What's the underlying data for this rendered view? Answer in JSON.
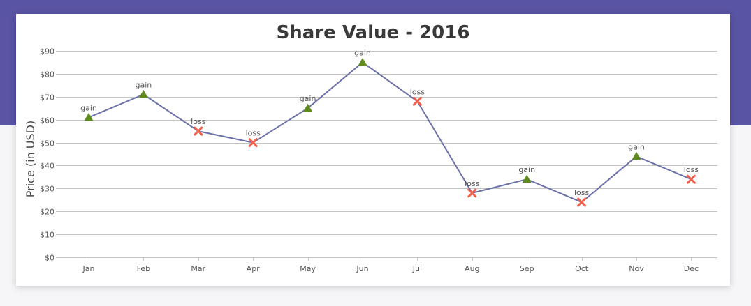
{
  "colors": {
    "header_band": "#5a54a4",
    "line": "#6b70a8",
    "gain_marker": "#5f8a1e",
    "loss_marker": "#f0614d",
    "grid": "#c4c4c4"
  },
  "chart_data": {
    "type": "line",
    "title": "Share Value - 2016",
    "xlabel": "",
    "ylabel": "Price (in USD)",
    "y_prefix": "$",
    "ylim": [
      0,
      90
    ],
    "y_ticks": [
      0,
      10,
      20,
      30,
      40,
      50,
      60,
      70,
      80,
      90
    ],
    "y_tick_labels": [
      "$0",
      "$10",
      "$20",
      "$30",
      "$40",
      "$50",
      "$60",
      "$70",
      "$80",
      "$90"
    ],
    "grid": true,
    "categories": [
      "Jan",
      "Feb",
      "Mar",
      "Apr",
      "May",
      "Jun",
      "Jul",
      "Aug",
      "Sep",
      "Oct",
      "Nov",
      "Dec"
    ],
    "values": [
      61,
      71,
      55,
      50,
      65,
      85,
      68,
      28,
      34,
      24,
      44,
      34
    ],
    "labels": [
      "gain",
      "gain",
      "loss",
      "loss",
      "gain",
      "gain",
      "loss",
      "loss",
      "gain",
      "loss",
      "gain",
      "loss"
    ],
    "markers": [
      "triangle",
      "triangle",
      "cross",
      "cross",
      "triangle",
      "triangle",
      "cross",
      "cross",
      "triangle",
      "cross",
      "triangle",
      "cross"
    ]
  }
}
